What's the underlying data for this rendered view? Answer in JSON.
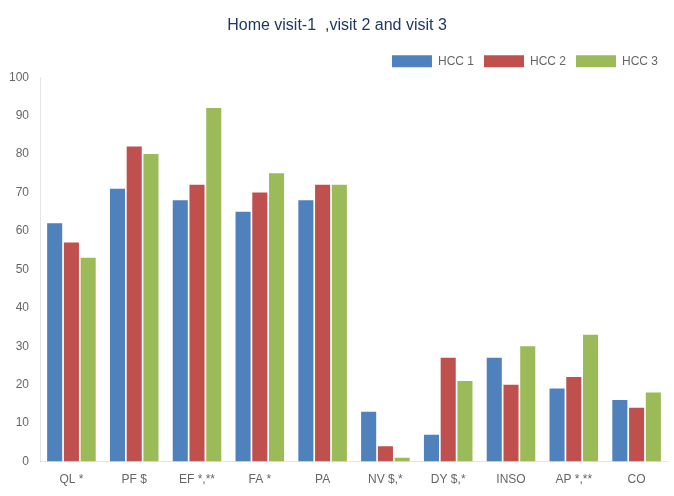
{
  "chart_data": {
    "type": "bar",
    "title": "Home visit-1  ,visit 2 and visit 3",
    "categories": [
      "QL *",
      "PF $",
      "EF *,**",
      "FA *",
      "PA",
      "NV $,*",
      "DY $,*",
      "INSO",
      "AP *,**",
      "CO"
    ],
    "series": [
      {
        "name": "HCC 1",
        "color": "#4F81BD",
        "values": [
          62,
          71,
          68,
          65,
          68,
          13,
          7,
          27,
          19,
          16
        ]
      },
      {
        "name": "HCC 2",
        "color": "#C0504D",
        "values": [
          57,
          82,
          72,
          70,
          72,
          4,
          27,
          20,
          22,
          14
        ]
      },
      {
        "name": "HCC 3",
        "color": "#9BBB59",
        "values": [
          53,
          80,
          92,
          75,
          72,
          1,
          21,
          30,
          33,
          18
        ]
      }
    ],
    "ylim": [
      0,
      100
    ],
    "yticks": [
      0,
      10,
      20,
      30,
      40,
      50,
      60,
      70,
      80,
      90,
      100
    ],
    "grid": false,
    "legend": "upper right"
  }
}
